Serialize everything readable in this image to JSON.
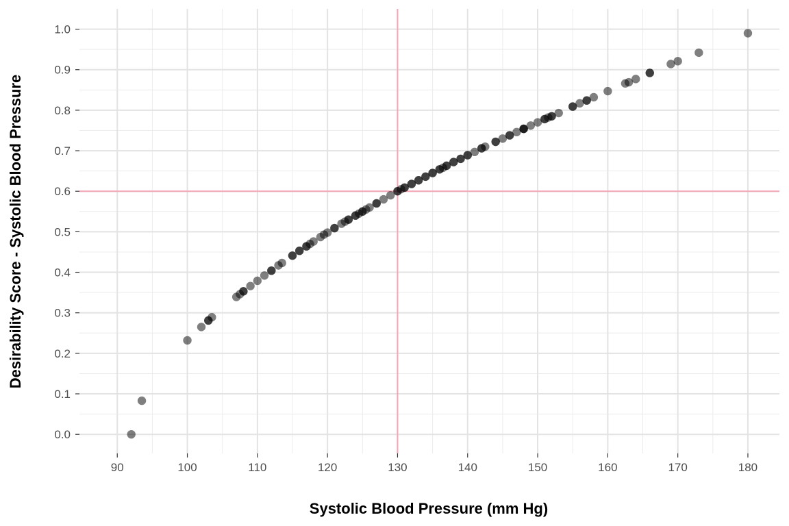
{
  "chart_data": {
    "type": "scatter",
    "title": "",
    "xlabel": "Systolic Blood Pressure (mm Hg)",
    "ylabel": "Desirability Score - Systolic Blood Pressure",
    "xlim": [
      84.6,
      184.5
    ],
    "ylim": [
      -0.047,
      1.05
    ],
    "x_ticks": [
      90,
      100,
      110,
      120,
      130,
      140,
      150,
      160,
      170,
      180
    ],
    "y_ticks": [
      0.0,
      0.1,
      0.2,
      0.3,
      0.4,
      0.5,
      0.6,
      0.7,
      0.8,
      0.9,
      1.0
    ],
    "x_tick_labels": [
      "90",
      "100",
      "110",
      "120",
      "130",
      "140",
      "150",
      "160",
      "170",
      "180"
    ],
    "y_tick_labels": [
      "0.0",
      "0.1",
      "0.2",
      "0.3",
      "0.4",
      "0.5",
      "0.6",
      "0.7",
      "0.8",
      "0.9",
      "1.0"
    ],
    "grid": true,
    "point_color": "#000000",
    "point_alpha": 0.5,
    "reference_line_color": "#f4a6b6",
    "reference_lines": {
      "x": 130,
      "y": 0.6
    },
    "series": [
      {
        "points": [
          [
            92,
            0.0
          ],
          [
            93.5,
            0.083
          ],
          [
            100,
            0.232
          ],
          [
            102,
            0.265
          ],
          [
            103,
            0.281
          ],
          [
            103,
            0.281
          ],
          [
            103.5,
            0.289
          ],
          [
            107,
            0.339
          ],
          [
            107.5,
            0.346
          ],
          [
            108,
            0.353
          ],
          [
            108,
            0.353
          ],
          [
            109,
            0.366
          ],
          [
            110,
            0.379
          ],
          [
            111,
            0.392
          ],
          [
            112,
            0.404
          ],
          [
            112,
            0.404
          ],
          [
            113,
            0.417
          ],
          [
            113.5,
            0.423
          ],
          [
            115,
            0.441
          ],
          [
            115,
            0.441
          ],
          [
            116,
            0.453
          ],
          [
            116,
            0.453
          ],
          [
            117,
            0.464
          ],
          [
            117,
            0.464
          ],
          [
            117.5,
            0.47
          ],
          [
            118,
            0.476
          ],
          [
            119,
            0.487
          ],
          [
            119.5,
            0.493
          ],
          [
            120,
            0.498
          ],
          [
            121,
            0.509
          ],
          [
            121,
            0.509
          ],
          [
            122,
            0.52
          ],
          [
            122.5,
            0.525
          ],
          [
            123,
            0.53
          ],
          [
            123,
            0.53
          ],
          [
            124,
            0.54
          ],
          [
            124,
            0.54
          ],
          [
            124.5,
            0.545
          ],
          [
            125,
            0.55
          ],
          [
            125,
            0.55
          ],
          [
            125.5,
            0.555
          ],
          [
            126,
            0.56
          ],
          [
            127,
            0.57
          ],
          [
            127,
            0.57
          ],
          [
            128,
            0.58
          ],
          [
            129,
            0.59
          ],
          [
            130,
            0.6
          ],
          [
            130,
            0.6
          ],
          [
            130.5,
            0.605
          ],
          [
            131,
            0.609
          ],
          [
            131,
            0.609
          ],
          [
            132,
            0.618
          ],
          [
            132,
            0.618
          ],
          [
            133,
            0.627
          ],
          [
            133,
            0.627
          ],
          [
            134,
            0.636
          ],
          [
            134,
            0.636
          ],
          [
            135,
            0.645
          ],
          [
            135,
            0.645
          ],
          [
            136,
            0.654
          ],
          [
            136,
            0.654
          ],
          [
            136.5,
            0.658
          ],
          [
            137,
            0.663
          ],
          [
            137,
            0.663
          ],
          [
            138,
            0.672
          ],
          [
            138,
            0.672
          ],
          [
            139,
            0.68
          ],
          [
            139,
            0.68
          ],
          [
            140,
            0.689
          ],
          [
            140,
            0.689
          ],
          [
            141,
            0.697
          ],
          [
            142,
            0.706
          ],
          [
            142,
            0.706
          ],
          [
            142.5,
            0.71
          ],
          [
            144,
            0.722
          ],
          [
            144,
            0.722
          ],
          [
            145,
            0.73
          ],
          [
            146,
            0.738
          ],
          [
            146,
            0.738
          ],
          [
            147,
            0.746
          ],
          [
            148,
            0.754
          ],
          [
            148,
            0.754
          ],
          [
            148,
            0.754
          ],
          [
            149,
            0.762
          ],
          [
            150,
            0.77
          ],
          [
            151,
            0.778
          ],
          [
            151,
            0.778
          ],
          [
            151.5,
            0.782
          ],
          [
            152,
            0.785
          ],
          [
            152,
            0.785
          ],
          [
            153,
            0.793
          ],
          [
            155,
            0.809
          ],
          [
            155,
            0.809
          ],
          [
            156,
            0.817
          ],
          [
            157,
            0.824
          ],
          [
            157,
            0.824
          ],
          [
            158,
            0.832
          ],
          [
            160,
            0.847
          ],
          [
            162.5,
            0.866
          ],
          [
            163,
            0.869
          ],
          [
            164,
            0.877
          ],
          [
            166,
            0.892
          ],
          [
            166,
            0.892
          ],
          [
            169,
            0.914
          ],
          [
            170,
            0.921
          ],
          [
            173,
            0.942
          ],
          [
            180,
            0.99
          ]
        ]
      }
    ]
  }
}
